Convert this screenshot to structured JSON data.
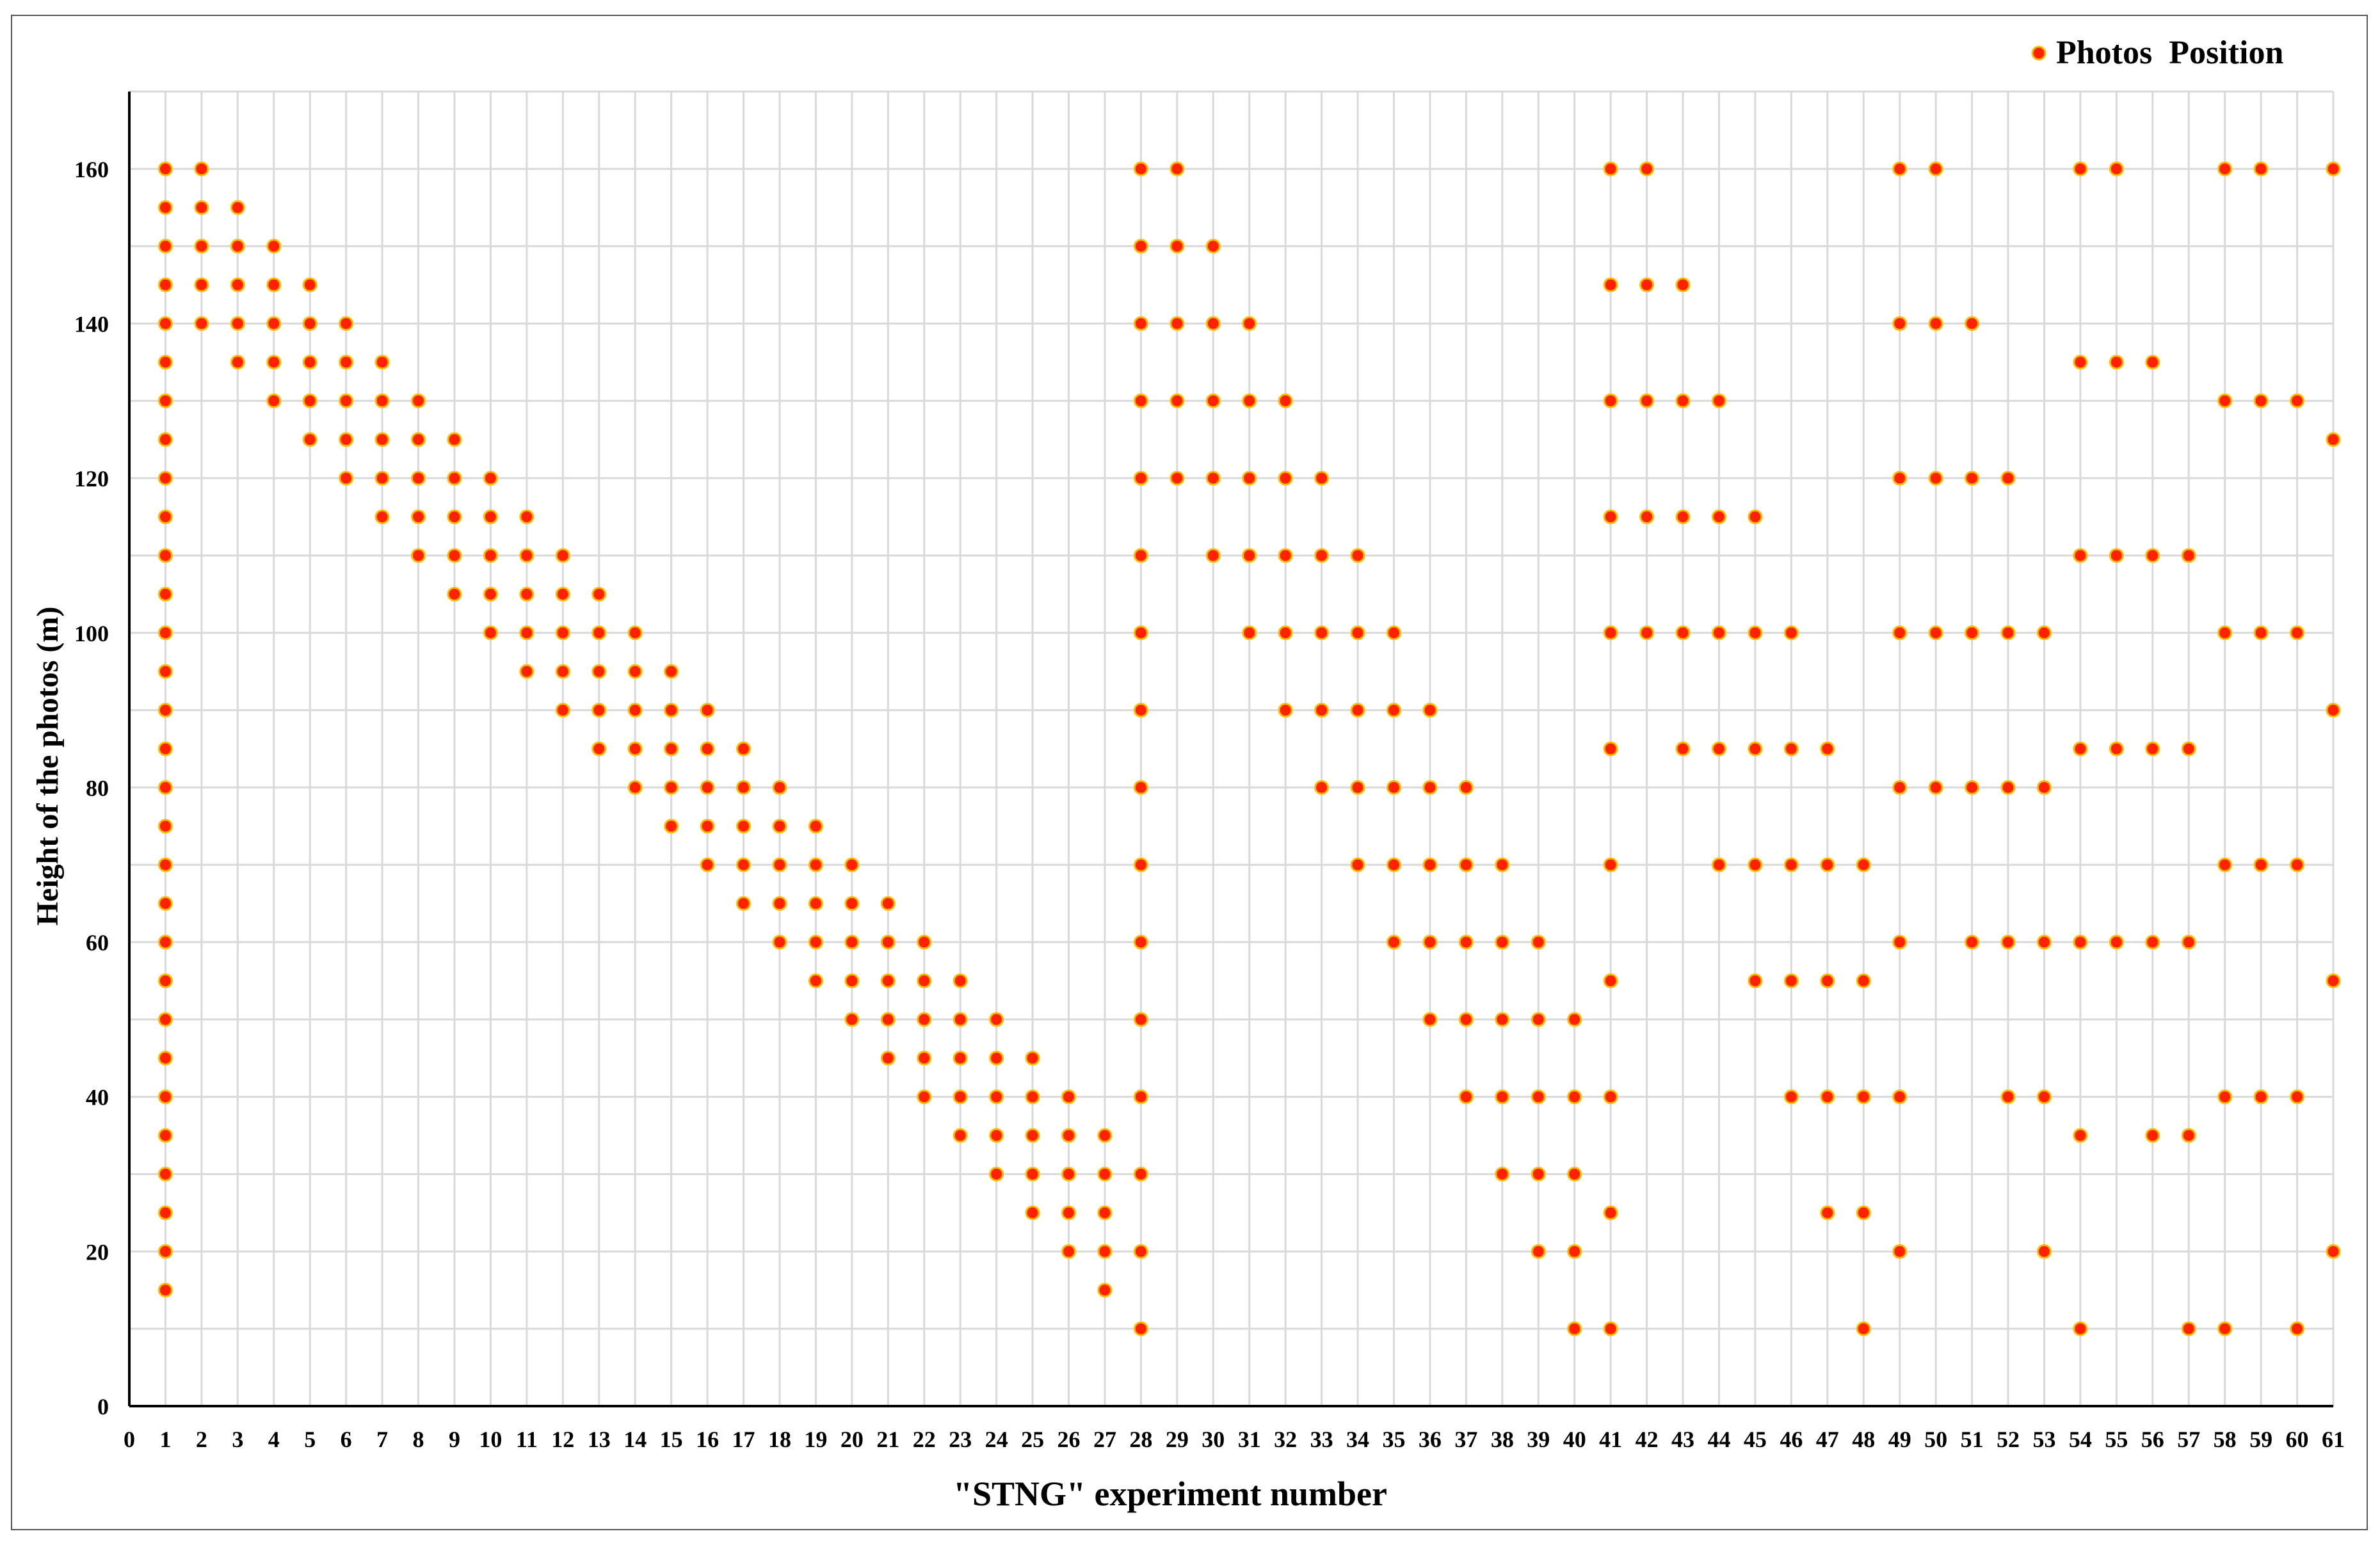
{
  "chart_data": {
    "type": "scatter",
    "xlabel": "\"STNG\" experiment number",
    "ylabel": "Height of the photos (m)",
    "xlim": [
      0,
      61
    ],
    "ylim": [
      0,
      170
    ],
    "x_ticks": [
      0,
      1,
      2,
      3,
      4,
      5,
      6,
      7,
      8,
      9,
      10,
      11,
      12,
      13,
      14,
      15,
      16,
      17,
      18,
      19,
      20,
      21,
      22,
      23,
      24,
      25,
      26,
      27,
      28,
      29,
      30,
      31,
      32,
      33,
      34,
      35,
      36,
      37,
      38,
      39,
      40,
      41,
      42,
      43,
      44,
      45,
      46,
      47,
      48,
      49,
      50,
      51,
      52,
      53,
      54,
      55,
      56,
      57,
      58,
      59,
      60,
      61
    ],
    "y_ticks": [
      0,
      20,
      40,
      60,
      80,
      100,
      120,
      140,
      160
    ],
    "grid": "vertical gridlines at each integer x, horizontal gridlines every 10 m",
    "legend_position": "top-right",
    "colors": {
      "marker_fill": "#ff2200",
      "marker_edge": "#ffbb00",
      "grid": "#d9d9d9",
      "axis": "#000000"
    },
    "series": [
      {
        "name": "Photos  Position",
        "points": [
          [
            1,
            [
              160,
              155,
              150,
              145,
              140,
              135,
              130,
              125,
              120,
              115,
              110,
              105,
              100,
              95,
              90,
              85,
              80,
              75,
              70,
              65,
              60,
              55,
              50,
              45,
              40,
              35,
              30,
              25,
              20,
              15
            ]
          ],
          [
            2,
            [
              160,
              155,
              150,
              145,
              140
            ]
          ],
          [
            3,
            [
              155,
              150,
              145,
              140,
              135
            ]
          ],
          [
            4,
            [
              150,
              145,
              140,
              135,
              130
            ]
          ],
          [
            5,
            [
              145,
              140,
              135,
              130,
              125
            ]
          ],
          [
            6,
            [
              140,
              135,
              130,
              125,
              120
            ]
          ],
          [
            7,
            [
              135,
              130,
              125,
              120,
              115
            ]
          ],
          [
            8,
            [
              130,
              125,
              120,
              115,
              110
            ]
          ],
          [
            9,
            [
              125,
              120,
              115,
              110,
              105
            ]
          ],
          [
            10,
            [
              120,
              115,
              110,
              105,
              100
            ]
          ],
          [
            11,
            [
              115,
              110,
              105,
              100,
              95
            ]
          ],
          [
            12,
            [
              110,
              105,
              100,
              95,
              90
            ]
          ],
          [
            13,
            [
              105,
              100,
              95,
              90,
              85
            ]
          ],
          [
            14,
            [
              100,
              95,
              90,
              85,
              80
            ]
          ],
          [
            15,
            [
              95,
              90,
              85,
              80,
              75
            ]
          ],
          [
            16,
            [
              90,
              85,
              80,
              75,
              70
            ]
          ],
          [
            17,
            [
              85,
              80,
              75,
              70,
              65
            ]
          ],
          [
            18,
            [
              80,
              75,
              70,
              65,
              60
            ]
          ],
          [
            19,
            [
              75,
              70,
              65,
              60,
              55
            ]
          ],
          [
            20,
            [
              70,
              65,
              60,
              55,
              50
            ]
          ],
          [
            21,
            [
              65,
              60,
              55,
              50,
              45
            ]
          ],
          [
            22,
            [
              60,
              55,
              50,
              45,
              40
            ]
          ],
          [
            23,
            [
              55,
              50,
              45,
              40,
              35
            ]
          ],
          [
            24,
            [
              50,
              45,
              40,
              35,
              30
            ]
          ],
          [
            25,
            [
              45,
              40,
              35,
              30,
              25
            ]
          ],
          [
            26,
            [
              40,
              35,
              30,
              25,
              20
            ]
          ],
          [
            27,
            [
              35,
              30,
              25,
              20,
              15
            ]
          ],
          [
            28,
            [
              160,
              150,
              140,
              130,
              120,
              110,
              100,
              90,
              80,
              70,
              60,
              50,
              40,
              30,
              20,
              10
            ]
          ],
          [
            29,
            [
              160,
              150,
              140,
              130,
              120
            ]
          ],
          [
            30,
            [
              150,
              140,
              130,
              120,
              110
            ]
          ],
          [
            31,
            [
              140,
              130,
              120,
              110,
              100
            ]
          ],
          [
            32,
            [
              130,
              120,
              110,
              100,
              90
            ]
          ],
          [
            33,
            [
              120,
              110,
              100,
              90,
              80
            ]
          ],
          [
            34,
            [
              110,
              100,
              90,
              80,
              70
            ]
          ],
          [
            35,
            [
              100,
              90,
              80,
              70,
              60
            ]
          ],
          [
            36,
            [
              90,
              80,
              70,
              60,
              50
            ]
          ],
          [
            37,
            [
              80,
              70,
              60,
              50,
              40
            ]
          ],
          [
            38,
            [
              70,
              60,
              50,
              40,
              30
            ]
          ],
          [
            39,
            [
              60,
              50,
              40,
              30,
              20
            ]
          ],
          [
            40,
            [
              50,
              40,
              30,
              20,
              10
            ]
          ],
          [
            41,
            [
              160,
              145,
              130,
              115,
              100,
              85,
              70,
              55,
              40,
              25,
              10
            ]
          ],
          [
            42,
            [
              160,
              145,
              130,
              115,
              100
            ]
          ],
          [
            43,
            [
              145,
              130,
              115,
              100,
              85
            ]
          ],
          [
            44,
            [
              130,
              115,
              100,
              85,
              70
            ]
          ],
          [
            45,
            [
              115,
              100,
              85,
              70,
              55
            ]
          ],
          [
            46,
            [
              100,
              85,
              70,
              55,
              40
            ]
          ],
          [
            47,
            [
              85,
              70,
              55,
              40,
              25
            ]
          ],
          [
            48,
            [
              70,
              55,
              40,
              25,
              10
            ]
          ],
          [
            49,
            [
              160,
              140,
              120,
              100,
              80,
              60,
              40,
              20
            ]
          ],
          [
            50,
            [
              160,
              140,
              120,
              100,
              80
            ]
          ],
          [
            51,
            [
              140,
              120,
              100,
              80,
              60
            ]
          ],
          [
            52,
            [
              120,
              100,
              80,
              60,
              40
            ]
          ],
          [
            53,
            [
              100,
              80,
              60,
              40,
              20
            ]
          ],
          [
            54,
            [
              160,
              135,
              110,
              85,
              60,
              35,
              10
            ]
          ],
          [
            55,
            [
              160,
              135,
              110,
              85,
              60
            ]
          ],
          [
            56,
            [
              135,
              110,
              85,
              60,
              35
            ]
          ],
          [
            57,
            [
              110,
              85,
              60,
              35,
              10
            ]
          ],
          [
            58,
            [
              160,
              130,
              100,
              70,
              40,
              10
            ]
          ],
          [
            59,
            [
              160,
              130,
              100,
              70,
              40
            ]
          ],
          [
            60,
            [
              130,
              100,
              70,
              40,
              10
            ]
          ],
          [
            61,
            [
              160,
              125,
              90,
              55,
              20
            ]
          ]
        ]
      }
    ]
  }
}
